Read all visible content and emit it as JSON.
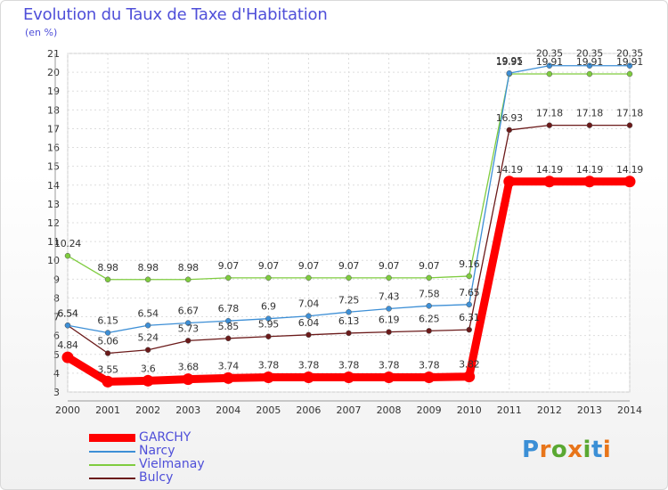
{
  "header": {
    "title": "Evolution du Taux de Taxe d'Habitation",
    "subtitle": "(en %)"
  },
  "brand": {
    "text": "Proxiti",
    "letter_colors": [
      "#3b8fd6",
      "#e8751a",
      "#5aa832",
      "#e8751a",
      "#5aa832",
      "#3b8fd6",
      "#e8751a"
    ]
  },
  "chart_data": {
    "type": "line",
    "x": [
      2000,
      2001,
      2002,
      2003,
      2004,
      2005,
      2006,
      2007,
      2008,
      2009,
      2010,
      2011,
      2012,
      2013,
      2014
    ],
    "xtick_labels": [
      "2000",
      "2001",
      "2002",
      "2003",
      "2004",
      "2005",
      "2006",
      "2007",
      "2008",
      "2009",
      "2010",
      "2011",
      "2012",
      "2013",
      "2014"
    ],
    "ylim": [
      3,
      21
    ],
    "yticks": [
      3,
      4,
      5,
      6,
      7,
      8,
      9,
      10,
      11,
      12,
      13,
      14,
      15,
      16,
      17,
      18,
      19,
      20,
      21
    ],
    "ytick_labels": [
      "3",
      "4",
      "5",
      "6",
      "7",
      "8",
      "9",
      "10",
      "11",
      "12",
      "13",
      "14",
      "15",
      "16",
      "17",
      "18",
      "19",
      "20",
      "21"
    ],
    "grid": true,
    "legend_position": "bottom-left",
    "series": [
      {
        "name": "Bulcy",
        "color": "#6b1a1a",
        "values": [
          6.54,
          5.06,
          5.24,
          5.73,
          5.85,
          5.95,
          6.04,
          6.13,
          6.19,
          6.25,
          6.31,
          16.93,
          17.18,
          17.18,
          17.18
        ],
        "labels": [
          "6.54",
          "5.06",
          "5.24",
          "5.73",
          "5.85",
          "5.95",
          "6.04",
          "6.13",
          "6.19",
          "6.25",
          "6.31",
          "16.93",
          "17.18",
          "17.18",
          "17.18"
        ]
      },
      {
        "name": "Vielmanay",
        "color": "#7fcc3f",
        "values": [
          10.24,
          8.98,
          8.98,
          8.98,
          9.07,
          9.07,
          9.07,
          9.07,
          9.07,
          9.07,
          9.16,
          19.91,
          19.91,
          19.91,
          19.91
        ],
        "labels": [
          "10.24",
          "8.98",
          "8.98",
          "8.98",
          "9.07",
          "9.07",
          "9.07",
          "9.07",
          "9.07",
          "9.07",
          "9.16",
          "19.91",
          "19.91",
          "19.91",
          "19.91"
        ]
      },
      {
        "name": "Narcy",
        "color": "#3d8fd6",
        "values": [
          6.54,
          6.15,
          6.54,
          6.67,
          6.78,
          6.9,
          7.04,
          7.25,
          7.43,
          7.58,
          7.65,
          19.95,
          20.35,
          20.35,
          20.35
        ],
        "labels": [
          "6.54",
          "6.15",
          "6.54",
          "6.67",
          "6.78",
          "6.9",
          "7.04",
          "7.25",
          "7.43",
          "7.58",
          "7.65",
          "19.95",
          "20.35",
          "20.35",
          "20.35"
        ]
      },
      {
        "name": "GARCHY",
        "color": "#ff0000",
        "values": [
          4.84,
          3.55,
          3.6,
          3.68,
          3.74,
          3.78,
          3.78,
          3.78,
          3.78,
          3.78,
          3.82,
          14.19,
          14.19,
          14.19,
          14.19
        ],
        "labels": [
          "4.84",
          "3.55",
          "3.6",
          "3.68",
          "3.74",
          "3.78",
          "3.78",
          "3.78",
          "3.78",
          "3.78",
          "3.82",
          "14.19",
          "14.19",
          "14.19",
          "14.19"
        ]
      }
    ]
  },
  "legend": {
    "items": [
      {
        "label": "GARCHY",
        "color": "#ff0000"
      },
      {
        "label": "Narcy",
        "color": "#3d8fd6"
      },
      {
        "label": "Vielmanay",
        "color": "#7fcc3f"
      },
      {
        "label": "Bulcy",
        "color": "#6b1a1a"
      }
    ]
  }
}
